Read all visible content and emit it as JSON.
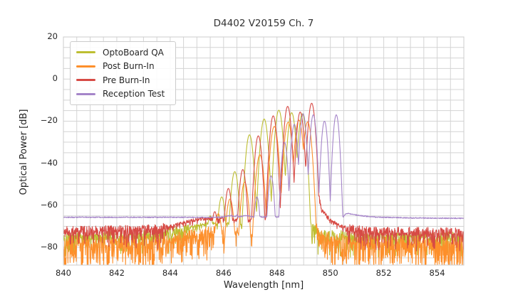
{
  "chart_data": {
    "type": "line",
    "title": "D4402 V20159 Ch. 7",
    "xlabel": "Wavelength [nm]",
    "ylabel": "Optical Power [dB]",
    "xlim": [
      840,
      855
    ],
    "ylim": [
      -88.4,
      20
    ],
    "xticks": {
      "values": [
        840,
        842,
        844,
        846,
        848,
        850,
        852,
        854
      ],
      "labels": [
        "840",
        "842",
        "844",
        "846",
        "848",
        "850",
        "852",
        "854"
      ]
    },
    "yticks": {
      "values": [
        20,
        0,
        -20,
        -40,
        -60,
        -80
      ],
      "labels": [
        "20",
        "0",
        "−20",
        "−40",
        "−60",
        "−80"
      ]
    },
    "grid": {
      "on": true,
      "x_step": 0.5,
      "y_step": 5,
      "color": "#d4d4d4",
      "border_color": "#cccccc"
    },
    "legend_position": "upper left",
    "series": [
      {
        "name": "OptoBoard QA",
        "color": "#bdbe31",
        "noise_floor_db": -75,
        "mode_spacing_nm": 0.5,
        "valley_drop_db": 34,
        "peaks": [
          [
            845.5,
            -65
          ],
          [
            845.93,
            -56
          ],
          [
            846.42,
            -44
          ],
          [
            846.97,
            -26.5
          ],
          [
            847.52,
            -19
          ],
          [
            848.07,
            -14.8
          ],
          [
            848.55,
            -16
          ],
          [
            848.95,
            -16.5
          ]
        ],
        "base": [
          [
            840,
            -75
          ],
          [
            843.5,
            -74
          ],
          [
            844.4,
            -71.5
          ],
          [
            845.2,
            -69
          ],
          [
            845.9,
            -68.2
          ],
          [
            846.5,
            -69.5
          ],
          [
            848.7,
            -69.5
          ],
          [
            849.05,
            -55
          ],
          [
            849.3,
            -71
          ],
          [
            849.8,
            -74
          ],
          [
            851,
            -74.5
          ],
          [
            855,
            -75
          ]
        ],
        "noise": {
          "up": 2.3,
          "spike_p": 0.28,
          "spike_max": 9,
          "smooth_above": -70.5
        }
      },
      {
        "name": "Post Burn-In",
        "color": "#fd8f2b",
        "noise_floor_db": -77,
        "mode_spacing_nm": 0.5,
        "valley_drop_db": 31,
        "peaks": [
          [
            845.8,
            -64
          ],
          [
            846.24,
            -57
          ],
          [
            846.79,
            -49
          ],
          [
            847.36,
            -36
          ],
          [
            847.9,
            -22.5
          ],
          [
            848.42,
            -20.5
          ],
          [
            848.82,
            -19.5
          ],
          [
            849.15,
            -20.4
          ]
        ],
        "base": [
          [
            840,
            -77.5
          ],
          [
            843.8,
            -76.5
          ],
          [
            844.8,
            -73.5
          ],
          [
            845.5,
            -71.8
          ],
          [
            846.1,
            -72.5
          ],
          [
            848.9,
            -72.5
          ],
          [
            849.3,
            -60
          ],
          [
            849.5,
            -72
          ],
          [
            850,
            -75.5
          ],
          [
            851,
            -76.5
          ],
          [
            855,
            -77
          ]
        ],
        "noise": {
          "up": 2.3,
          "spike_p": 0.55,
          "spike_max": 13,
          "smooth_above": -70
        }
      },
      {
        "name": "Pre Burn-In",
        "color": "#d74a45",
        "noise_floor_db": -72.5,
        "mode_spacing_nm": 0.45,
        "valley_drop_db": 32,
        "peaks": [
          [
            845.67,
            -63
          ],
          [
            846.18,
            -52
          ],
          [
            846.72,
            -43
          ],
          [
            847.3,
            -27
          ],
          [
            847.86,
            -17.5
          ],
          [
            848.4,
            -13
          ],
          [
            848.87,
            -15.7
          ],
          [
            849.3,
            -11.5
          ]
        ],
        "base": [
          [
            840,
            -72.5
          ],
          [
            843.6,
            -71.5
          ],
          [
            844.6,
            -67.8
          ],
          [
            845.2,
            -66.3
          ],
          [
            845.9,
            -65.8
          ],
          [
            846.5,
            -67
          ],
          [
            849.1,
            -67
          ],
          [
            849.5,
            -50
          ],
          [
            849.68,
            -62
          ],
          [
            850,
            -67
          ],
          [
            850.35,
            -69.5
          ],
          [
            850.8,
            -71.5
          ],
          [
            851.4,
            -72.5
          ],
          [
            855,
            -73
          ]
        ],
        "noise": {
          "up": 2.4,
          "spike_p": 0.28,
          "spike_max": 8,
          "smooth_above": -70.5
        }
      },
      {
        "name": "Reception Test",
        "color": "#a585c9",
        "noise_floor_db": -65.7,
        "mode_spacing_nm": 0.42,
        "valley_drop_db": 36,
        "peaks": [
          [
            846.5,
            -64.5
          ],
          [
            847.25,
            -56
          ],
          [
            847.78,
            -46
          ],
          [
            848.28,
            -30
          ],
          [
            848.65,
            -21.5
          ],
          [
            848.98,
            -16.5
          ],
          [
            849.36,
            -17
          ],
          [
            849.78,
            -20
          ],
          [
            850.22,
            -17
          ]
        ],
        "base": [
          [
            840,
            -65.7
          ],
          [
            845.9,
            -65.7
          ],
          [
            846.25,
            -64.9
          ],
          [
            846.55,
            -65.5
          ],
          [
            846.85,
            -64.9
          ],
          [
            847.1,
            -65.5
          ],
          [
            850.48,
            -65.5
          ],
          [
            850.6,
            -63.8
          ],
          [
            851.1,
            -64.9
          ],
          [
            851.7,
            -65.6
          ],
          [
            853,
            -66
          ],
          [
            855,
            -66.2
          ]
        ],
        "noise": {
          "up": 0.25,
          "spike_p": 0,
          "spike_max": 0,
          "smooth_above": -60
        }
      }
    ]
  }
}
